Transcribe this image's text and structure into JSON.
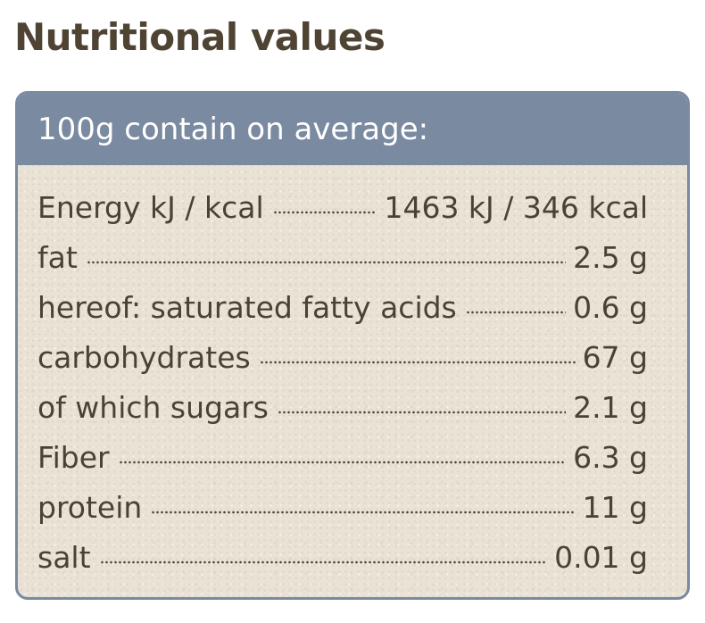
{
  "title": "Nutritional values",
  "panel": {
    "header": "100g contain on average:",
    "rows": [
      {
        "label": "Energy kJ / kcal",
        "value": "1463 kJ / 346 kcal"
      },
      {
        "label": "fat",
        "value": "2.5 g"
      },
      {
        "label": "hereof: saturated fatty acids",
        "value": "0.6 g"
      },
      {
        "label": "carbohydrates",
        "value": "67 g"
      },
      {
        "label": "of which sugars",
        "value": "2.1 g"
      },
      {
        "label": "Fiber",
        "value": "6.3 g"
      },
      {
        "label": "protein",
        "value": "11 g"
      },
      {
        "label": "salt",
        "value": "0.01 g"
      }
    ]
  },
  "colors": {
    "title": "#4f4434",
    "panel_header_bg": "#7a8aa1",
    "panel_body_bg": "#e9e2d5",
    "text": "#4a4233"
  }
}
